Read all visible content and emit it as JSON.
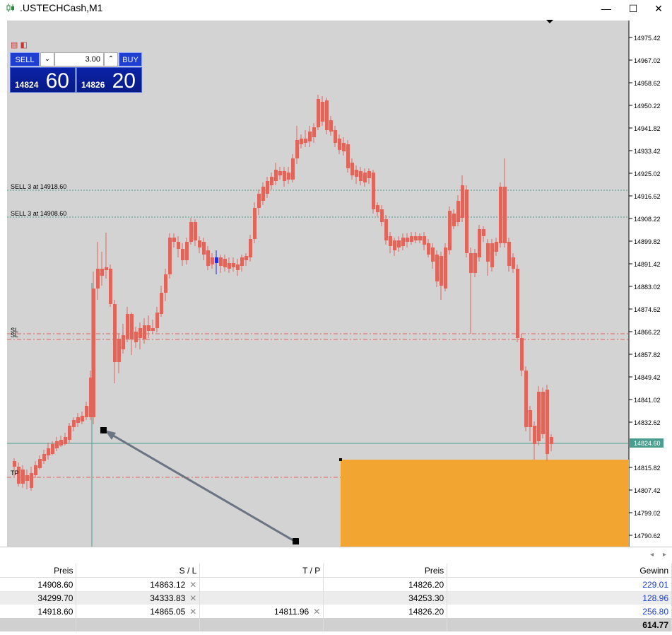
{
  "window": {
    "title": ".USTECHCash,M1"
  },
  "trade_panel": {
    "sell_label": "SELL",
    "buy_label": "BUY",
    "volume": "3.00",
    "bid_small": "14824",
    "bid_big": "60",
    "ask_small": "14826",
    "ask_big": "20"
  },
  "price_levels": [
    "14975.42",
    "14967.02",
    "14958.62",
    "14950.22",
    "14941.82",
    "14933.42",
    "14925.02",
    "14916.62",
    "14908.22",
    "14899.82",
    "14891.42",
    "14883.02",
    "14874.62",
    "14866.22",
    "14857.82",
    "14849.42",
    "14841.02",
    "14832.62",
    "14824.60",
    "14815.82",
    "14807.42",
    "14799.02",
    "14790.62"
  ],
  "current_price_label": "14824.60",
  "order_lines": {
    "sell1": "SELL 3 at 14918.60",
    "sell2": "SELL 3 at 14908.60",
    "sl": "SL",
    "tp": "TP"
  },
  "colors": {
    "bull": "#4a9e8e",
    "bear": "#e0665c",
    "background": "#d3d3d3",
    "rect": "#f3a531",
    "arrow": "#6b7483"
  },
  "table": {
    "headers": [
      "Preis",
      "S / L",
      "T / P",
      "Preis",
      "Gewinn"
    ],
    "rows": [
      {
        "open": "14908.60",
        "sl": "14863.12",
        "tp": "",
        "price": "14826.20",
        "profit": "229.01"
      },
      {
        "open": "34299.70",
        "sl": "34333.83",
        "tp": "",
        "price": "34253.30",
        "profit": "128.96"
      },
      {
        "open": "14918.60",
        "sl": "14865.05",
        "tp": "14811.96",
        "price": "14826.20",
        "profit": "256.80"
      }
    ],
    "total": "614.77"
  }
}
